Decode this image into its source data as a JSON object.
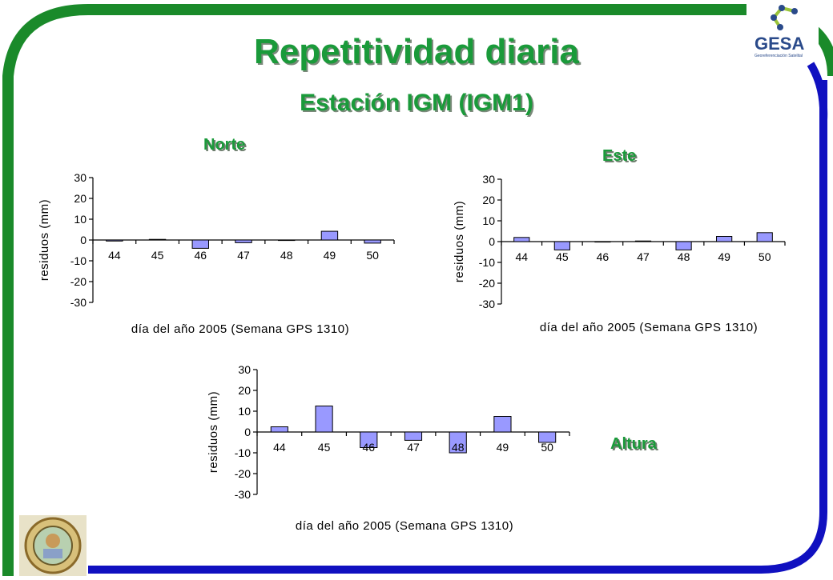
{
  "header": {
    "title": "Repetitividad diaria",
    "subtitle": "Estación IGM (IGM1)"
  },
  "logo": {
    "text": "GESA",
    "tagline": "Georeferenciación Satelital"
  },
  "seal": {
    "icon": "university-seal-icon"
  },
  "colors": {
    "bar_fill": "#9999ff",
    "bar_stroke": "#000000",
    "title_green": "#1a9a3a",
    "frame_green": "#1a8a2a",
    "frame_blue": "#1010c0"
  },
  "chart_data": [
    {
      "type": "bar",
      "title": "Norte",
      "categories": [
        "44",
        "45",
        "46",
        "47",
        "48",
        "49",
        "50"
      ],
      "values": [
        -0.5,
        0.3,
        -4,
        -1.3,
        0,
        4.2,
        -1.5
      ],
      "xlabel": "día del año 2005 (Semana GPS 1310)",
      "ylabel": "residuos (mm)",
      "ylim": [
        -30,
        30
      ],
      "yticks": [
        "30",
        "20",
        "10",
        "0",
        "-10",
        "-20",
        "-30"
      ]
    },
    {
      "type": "bar",
      "title": "Este",
      "categories": [
        "44",
        "45",
        "46",
        "47",
        "48",
        "49",
        "50"
      ],
      "values": [
        2,
        -4,
        0,
        0.3,
        -4,
        2.5,
        4.3
      ],
      "xlabel": "día del año 2005 (Semana GPS 1310)",
      "ylabel": "residuos (mm)",
      "ylim": [
        -30,
        30
      ],
      "yticks": [
        "30",
        "20",
        "10",
        "0",
        "-10",
        "-20",
        "-30"
      ]
    },
    {
      "type": "bar",
      "title": "Altura",
      "categories": [
        "44",
        "45",
        "46",
        "47",
        "48",
        "49",
        "50"
      ],
      "values": [
        2.5,
        12.5,
        -7.5,
        -4,
        -10,
        7.5,
        -5
      ],
      "xlabel": "día del año 2005 (Semana GPS 1310)",
      "ylabel": "residuos (mm)",
      "ylim": [
        -30,
        30
      ],
      "yticks": [
        "30",
        "20",
        "10",
        "0",
        "-10",
        "-20",
        "-30"
      ]
    }
  ]
}
